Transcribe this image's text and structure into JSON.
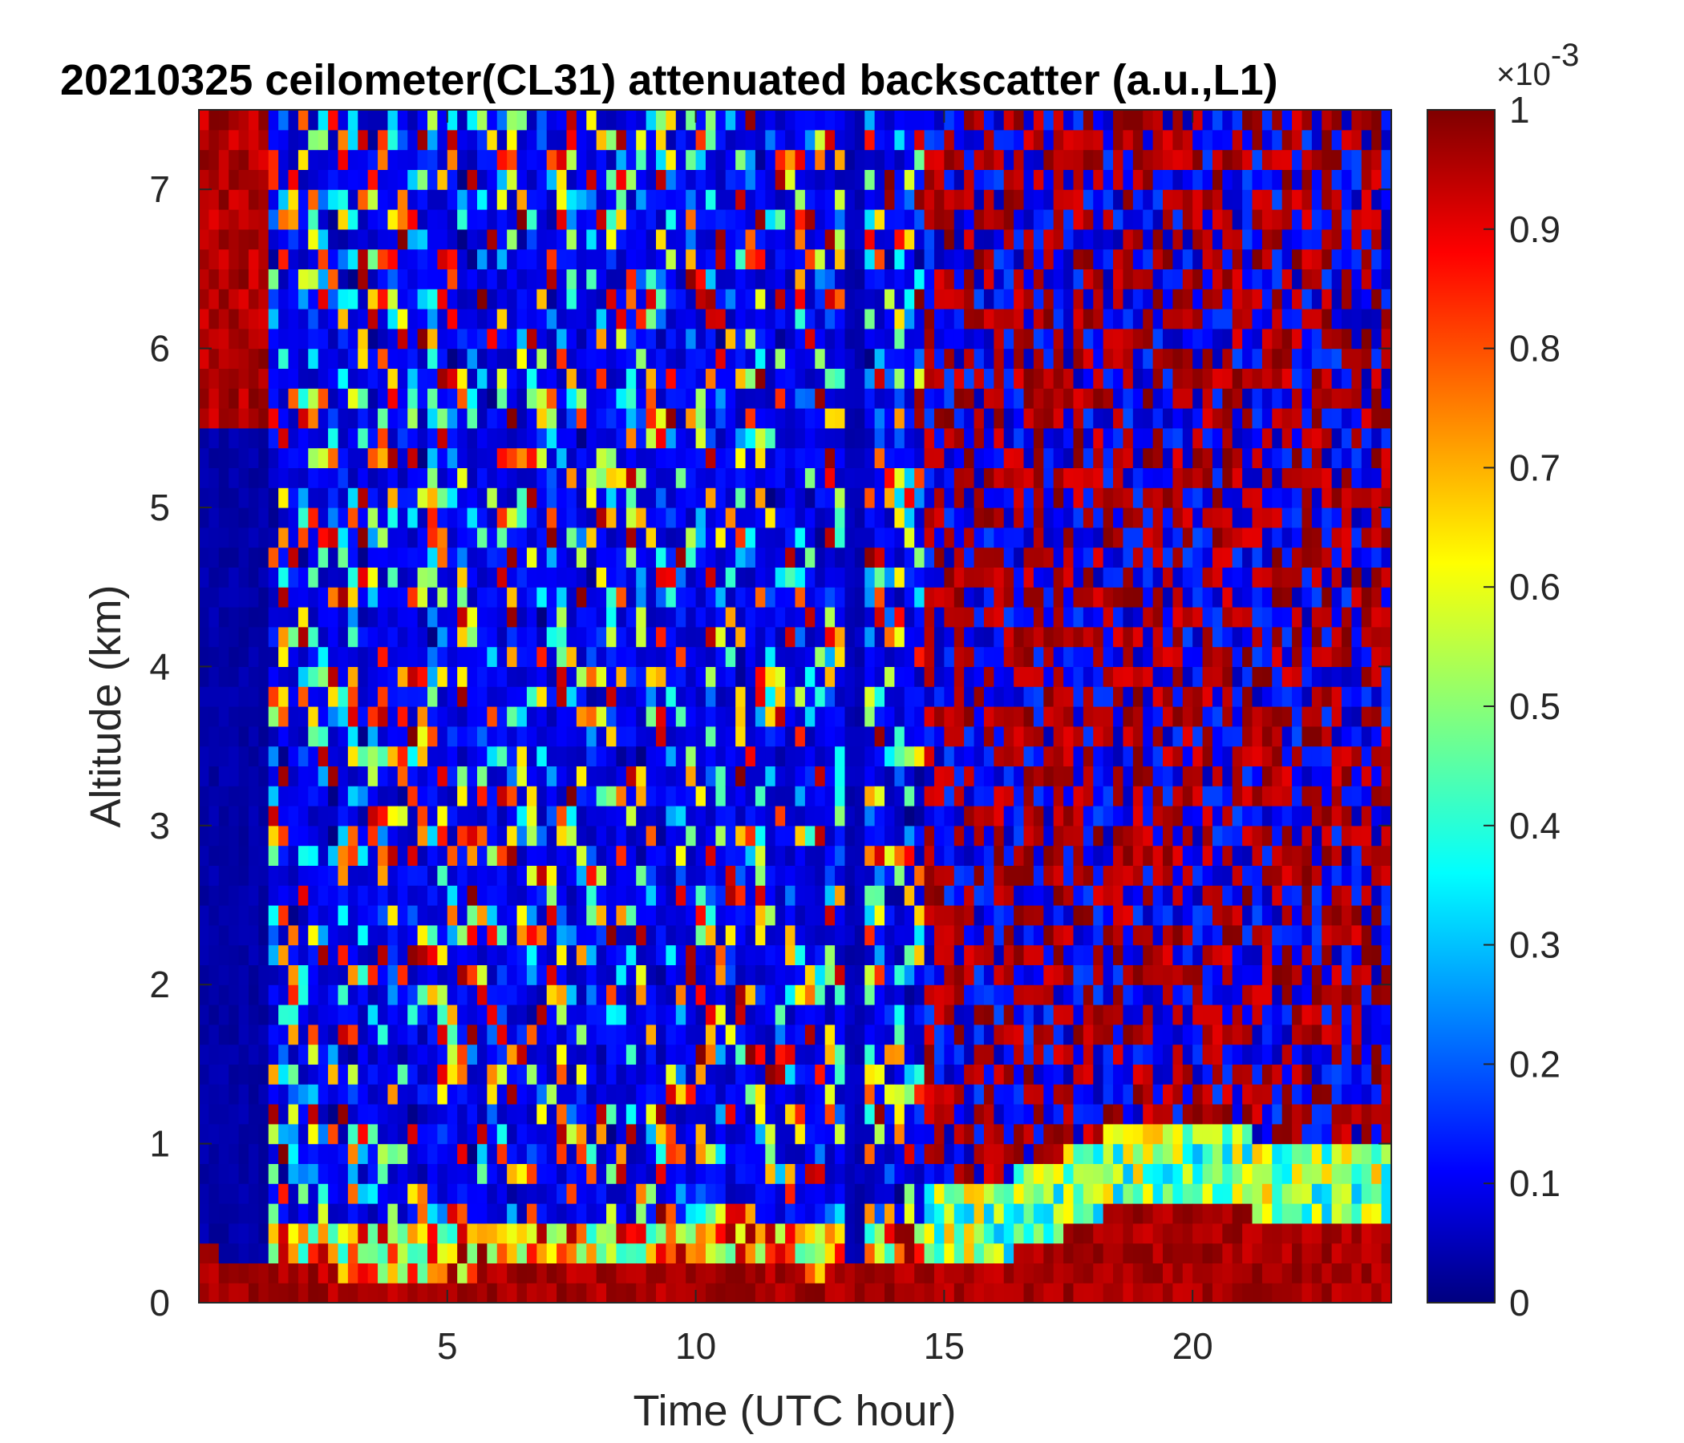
{
  "chart_data": {
    "type": "heatmap",
    "title": "20210325 ceilometer(CL31) attenuated backscatter (a.u.,L1)",
    "xlabel": "Time (UTC hour)",
    "ylabel": "Altitude (km)",
    "xlim": [
      0,
      24
    ],
    "ylim": [
      0,
      7.5
    ],
    "x_ticks": [
      "5",
      "10",
      "15",
      "20"
    ],
    "x_tick_values": [
      5,
      10,
      15,
      20
    ],
    "y_ticks": [
      "0",
      "1",
      "2",
      "3",
      "4",
      "5",
      "6",
      "7"
    ],
    "y_tick_values": [
      0,
      1,
      2,
      3,
      4,
      5,
      6,
      7
    ],
    "colorbar": {
      "colormap": "jet",
      "clim": [
        0,
        0.001
      ],
      "multiplier": "×10",
      "exponent": "-3",
      "ticks": [
        "0",
        "0.1",
        "0.2",
        "0.3",
        "0.4",
        "0.5",
        "0.6",
        "0.7",
        "0.8",
        "0.9",
        "1"
      ],
      "tick_values": [
        0,
        0.1,
        0.2,
        0.3,
        0.4,
        0.5,
        0.6,
        0.7,
        0.8,
        0.9,
        1
      ]
    },
    "boundary_layer_top_km": {
      "hours": [
        0,
        1,
        1.5,
        3,
        5,
        7,
        9,
        11,
        12.5,
        13,
        14,
        14.7,
        15,
        16,
        17,
        18,
        18.5,
        19.5,
        20.5,
        21.5,
        22.5,
        24
      ],
      "values": [
        0.35,
        0.25,
        0.2,
        0.18,
        0.17,
        0.2,
        0.2,
        0.22,
        0.18,
        0.22,
        0.2,
        0.2,
        0.25,
        0.28,
        0.38,
        0.55,
        0.6,
        0.62,
        0.6,
        0.55,
        0.45,
        0.45
      ]
    },
    "regions": [
      {
        "hours": [
          0,
          1.5
        ],
        "altitude_km": [
          5.5,
          7.5
        ],
        "level": "high"
      },
      {
        "hours": [
          0,
          1.5
        ],
        "altitude_km": [
          0.5,
          5.5
        ],
        "level": "low"
      },
      {
        "hours": [
          1.5,
          14.7
        ],
        "altitude_km": [
          0.2,
          7.5
        ],
        "level": "noisy-low"
      },
      {
        "hours": [
          13,
          13.5
        ],
        "altitude_km": [
          0.3,
          7.5
        ],
        "level": "low"
      },
      {
        "hours": [
          14.7,
          24
        ],
        "altitude_km": [
          0.6,
          7.5
        ],
        "level": "noisy-high"
      },
      {
        "hours": [
          17,
          23
        ],
        "altitude_km": [
          0,
          0.6
        ],
        "level": "high"
      }
    ],
    "grid": false,
    "legend": "none"
  }
}
